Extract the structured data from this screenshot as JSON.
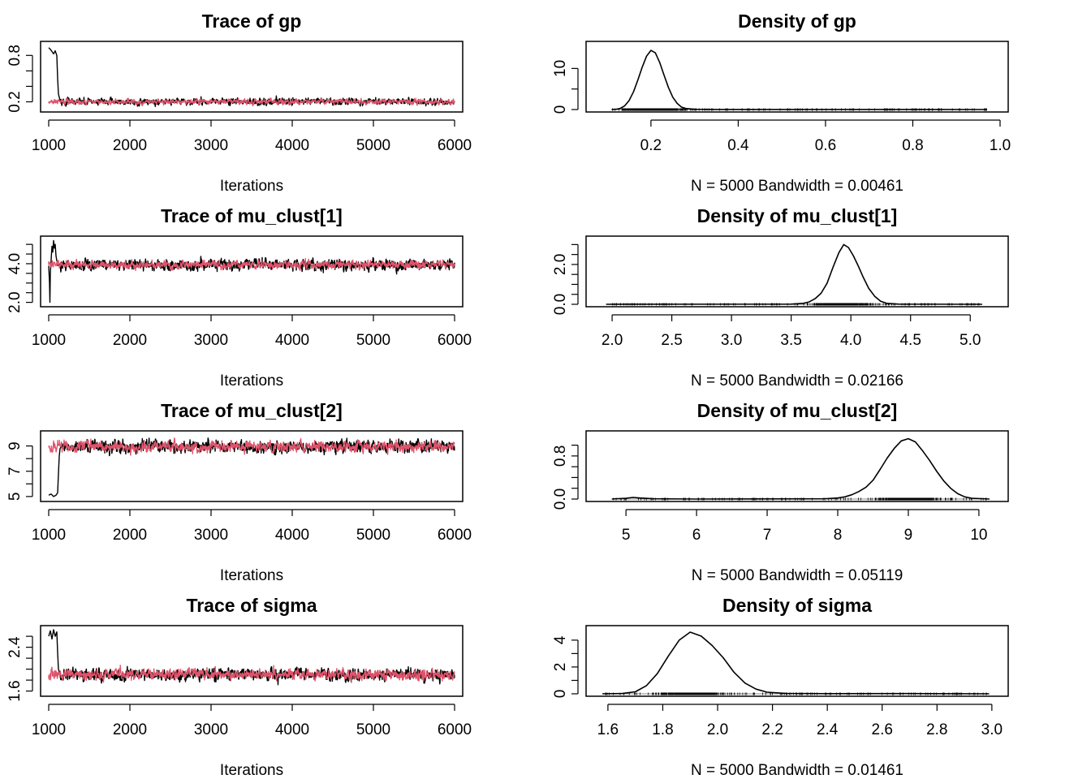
{
  "chart_data": [
    {
      "type": "line",
      "kind": "trace",
      "title": "Trace of gp",
      "xlabel": "Iterations",
      "xlim": [
        1000,
        6000
      ],
      "ylim": [
        0.1,
        0.95
      ],
      "xticks": [
        1000,
        2000,
        3000,
        4000,
        5000,
        6000
      ],
      "xtick_labels": [
        "1000",
        "2000",
        "3000",
        "4000",
        "5000",
        "6000"
      ],
      "yticks": [
        0.2,
        0.4,
        0.6,
        0.8
      ],
      "ytick_labels": [
        "0.2",
        "",
        "",
        "0.8"
      ],
      "series": [
        {
          "color": "#000000",
          "burnin": [
            [
              1000,
              0.9
            ],
            [
              1020,
              0.88
            ],
            [
              1040,
              0.85
            ],
            [
              1060,
              0.82
            ],
            [
              1080,
              0.86
            ],
            [
              1100,
              0.8
            ],
            [
              1110,
              0.5
            ],
            [
              1120,
              0.3
            ],
            [
              1140,
              0.22
            ]
          ],
          "mean": 0.2,
          "spread": 0.03
        },
        {
          "color": "#DF536B",
          "burnin": [
            [
              1000,
              0.2
            ]
          ],
          "mean": 0.2,
          "spread": 0.025
        }
      ]
    },
    {
      "type": "line",
      "kind": "density",
      "title": "Density of gp",
      "note": "N = 5000   Bandwidth = 0.00461",
      "xlim": [
        0.07,
        1.0
      ],
      "ylim": [
        0,
        16
      ],
      "xticks": [
        0.2,
        0.4,
        0.6,
        0.8,
        1.0
      ],
      "xtick_labels": [
        "0.2",
        "0.4",
        "0.6",
        "0.8",
        "1.0"
      ],
      "yticks": [
        0,
        5,
        10
      ],
      "ytick_labels": [
        "0",
        "",
        "10"
      ],
      "rug": [
        0.11,
        0.97
      ],
      "curve": [
        [
          0.11,
          0
        ],
        [
          0.12,
          0.05
        ],
        [
          0.13,
          0.3
        ],
        [
          0.14,
          0.9
        ],
        [
          0.15,
          2.2
        ],
        [
          0.16,
          4.3
        ],
        [
          0.17,
          7.2
        ],
        [
          0.18,
          10.3
        ],
        [
          0.19,
          13.0
        ],
        [
          0.2,
          14.4
        ],
        [
          0.21,
          13.8
        ],
        [
          0.22,
          11.5
        ],
        [
          0.23,
          8.4
        ],
        [
          0.24,
          5.4
        ],
        [
          0.25,
          3.0
        ],
        [
          0.26,
          1.5
        ],
        [
          0.27,
          0.6
        ],
        [
          0.28,
          0.25
        ],
        [
          0.3,
          0.05
        ],
        [
          0.35,
          0.01
        ],
        [
          0.8,
          0.02
        ],
        [
          0.97,
          0
        ]
      ]
    },
    {
      "type": "line",
      "kind": "trace",
      "title": "Trace of mu_clust[1]",
      "xlabel": "Iterations",
      "xlim": [
        1000,
        6000
      ],
      "ylim": [
        1.9,
        5.3
      ],
      "xticks": [
        1000,
        2000,
        3000,
        4000,
        5000,
        6000
      ],
      "xtick_labels": [
        "1000",
        "2000",
        "3000",
        "4000",
        "5000",
        "6000"
      ],
      "yticks": [
        2,
        2.5,
        3,
        3.5,
        4,
        4.5,
        5
      ],
      "ytick_labels": [
        "2.0",
        "",
        "",
        "",
        "4.0",
        "",
        ""
      ],
      "series": [
        {
          "color": "#000000",
          "burnin": [
            [
              1000,
              3.9
            ],
            [
              1010,
              3.0
            ],
            [
              1015,
              2.0
            ],
            [
              1020,
              3.5
            ],
            [
              1030,
              4.2
            ],
            [
              1040,
              4.9
            ],
            [
              1050,
              4.6
            ],
            [
              1060,
              5.2
            ],
            [
              1070,
              4.8
            ],
            [
              1080,
              5.0
            ],
            [
              1090,
              4.4
            ],
            [
              1110,
              3.9
            ],
            [
              1140,
              4.0
            ]
          ],
          "mean": 3.95,
          "spread": 0.2
        },
        {
          "color": "#DF536B",
          "burnin": [
            [
              1000,
              3.95
            ]
          ],
          "mean": 3.95,
          "spread": 0.15
        }
      ]
    },
    {
      "type": "line",
      "kind": "density",
      "title": "Density of mu_clust[1]",
      "note": "N = 5000   Bandwidth = 0.02166",
      "xlim": [
        1.85,
        5.25
      ],
      "ylim": [
        0,
        3.3
      ],
      "xticks": [
        2.0,
        2.5,
        3.0,
        3.5,
        4.0,
        4.5,
        5.0
      ],
      "xtick_labels": [
        "2.0",
        "2.5",
        "3.0",
        "3.5",
        "4.0",
        "4.5",
        "5.0"
      ],
      "yticks": [
        0,
        0.5,
        1,
        1.5,
        2,
        2.5,
        3
      ],
      "ytick_labels": [
        "0.0",
        "",
        "",
        "",
        "2.0",
        "",
        ""
      ],
      "rug": [
        1.95,
        5.1
      ],
      "curve": [
        [
          1.95,
          0
        ],
        [
          3.5,
          0.01
        ],
        [
          3.6,
          0.05
        ],
        [
          3.65,
          0.12
        ],
        [
          3.7,
          0.28
        ],
        [
          3.75,
          0.55
        ],
        [
          3.8,
          1.05
        ],
        [
          3.85,
          1.85
        ],
        [
          3.9,
          2.6
        ],
        [
          3.94,
          3.0
        ],
        [
          3.98,
          2.85
        ],
        [
          4.02,
          2.45
        ],
        [
          4.06,
          1.95
        ],
        [
          4.1,
          1.4
        ],
        [
          4.15,
          0.8
        ],
        [
          4.2,
          0.4
        ],
        [
          4.25,
          0.15
        ],
        [
          4.3,
          0.05
        ],
        [
          4.4,
          0.01
        ],
        [
          5.1,
          0
        ]
      ]
    },
    {
      "type": "line",
      "kind": "trace",
      "title": "Trace of mu_clust[2]",
      "xlabel": "Iterations",
      "xlim": [
        1000,
        6000
      ],
      "ylim": [
        4.8,
        10.0
      ],
      "xticks": [
        1000,
        2000,
        3000,
        4000,
        5000,
        6000
      ],
      "xtick_labels": [
        "1000",
        "2000",
        "3000",
        "4000",
        "5000",
        "6000"
      ],
      "yticks": [
        5,
        6,
        7,
        8,
        9
      ],
      "ytick_labels": [
        "5",
        "",
        "7",
        "",
        "9"
      ],
      "series": [
        {
          "color": "#000000",
          "burnin": [
            [
              1000,
              5.1
            ],
            [
              1030,
              5.2
            ],
            [
              1060,
              5.0
            ],
            [
              1090,
              5.1
            ],
            [
              1110,
              5.3
            ],
            [
              1120,
              6.8
            ],
            [
              1130,
              8.2
            ],
            [
              1140,
              8.8
            ],
            [
              1160,
              9.0
            ]
          ],
          "mean": 8.95,
          "spread": 0.35
        },
        {
          "color": "#DF536B",
          "burnin": [
            [
              1000,
              8.95
            ]
          ],
          "mean": 8.95,
          "spread": 0.3
        }
      ]
    },
    {
      "type": "line",
      "kind": "density",
      "title": "Density of mu_clust[2]",
      "note": "N = 5000   Bandwidth = 0.05119",
      "xlim": [
        4.55,
        10.3
      ],
      "ylim": [
        0,
        1.22
      ],
      "xticks": [
        5,
        6,
        7,
        8,
        9,
        10
      ],
      "xtick_labels": [
        "5",
        "6",
        "7",
        "8",
        "9",
        "10"
      ],
      "yticks": [
        0,
        0.2,
        0.4,
        0.6,
        0.8,
        1.0
      ],
      "ytick_labels": [
        "0.0",
        "",
        "",
        "",
        "0.8",
        ""
      ],
      "rug": [
        4.8,
        10.15
      ],
      "curve": [
        [
          4.8,
          0
        ],
        [
          5.0,
          0.015
        ],
        [
          5.1,
          0.03
        ],
        [
          5.2,
          0.02
        ],
        [
          5.4,
          0.005
        ],
        [
          6.0,
          0
        ],
        [
          7.8,
          0.005
        ],
        [
          8.0,
          0.02
        ],
        [
          8.1,
          0.04
        ],
        [
          8.2,
          0.08
        ],
        [
          8.3,
          0.14
        ],
        [
          8.4,
          0.22
        ],
        [
          8.5,
          0.35
        ],
        [
          8.6,
          0.55
        ],
        [
          8.7,
          0.76
        ],
        [
          8.8,
          0.94
        ],
        [
          8.9,
          1.08
        ],
        [
          9.0,
          1.12
        ],
        [
          9.1,
          1.06
        ],
        [
          9.2,
          0.9
        ],
        [
          9.3,
          0.72
        ],
        [
          9.4,
          0.52
        ],
        [
          9.5,
          0.34
        ],
        [
          9.6,
          0.2
        ],
        [
          9.7,
          0.1
        ],
        [
          9.8,
          0.04
        ],
        [
          9.9,
          0.015
        ],
        [
          10.15,
          0
        ]
      ]
    },
    {
      "type": "line",
      "kind": "trace",
      "title": "Trace of sigma",
      "xlabel": "Iterations",
      "xlim": [
        1000,
        6000
      ],
      "ylim": [
        1.55,
        2.75
      ],
      "xticks": [
        1000,
        2000,
        3000,
        4000,
        5000,
        6000
      ],
      "xtick_labels": [
        "1000",
        "2000",
        "3000",
        "4000",
        "5000",
        "6000"
      ],
      "yticks": [
        1.6,
        1.8,
        2.0,
        2.2,
        2.4,
        2.6
      ],
      "ytick_labels": [
        "1.6",
        "",
        "",
        "",
        "2.4",
        ""
      ],
      "series": [
        {
          "color": "#000000",
          "burnin": [
            [
              1000,
              2.6
            ],
            [
              1020,
              2.7
            ],
            [
              1040,
              2.55
            ],
            [
              1060,
              2.72
            ],
            [
              1080,
              2.6
            ],
            [
              1100,
              2.68
            ],
            [
              1110,
              2.3
            ],
            [
              1120,
              2.0
            ],
            [
              1140,
              1.9
            ]
          ],
          "mean": 1.9,
          "spread": 0.08
        },
        {
          "color": "#DF536B",
          "burnin": [
            [
              1000,
              1.9
            ]
          ],
          "mean": 1.9,
          "spread": 0.07
        }
      ]
    },
    {
      "type": "line",
      "kind": "density",
      "title": "Density of sigma",
      "note": "N = 5000   Bandwidth = 0.01461",
      "xlim": [
        1.55,
        3.03
      ],
      "ylim": [
        0,
        4.9
      ],
      "xticks": [
        1.6,
        1.8,
        2.0,
        2.2,
        2.4,
        2.6,
        2.8,
        3.0
      ],
      "xtick_labels": [
        "1.6",
        "1.8",
        "2.0",
        "2.2",
        "2.4",
        "2.6",
        "2.8",
        "3.0"
      ],
      "yticks": [
        0,
        1,
        2,
        3,
        4
      ],
      "ytick_labels": [
        "0",
        "",
        "2",
        "",
        "4"
      ],
      "rug": [
        1.58,
        2.99
      ],
      "curve": [
        [
          1.58,
          0
        ],
        [
          1.65,
          0.02
        ],
        [
          1.7,
          0.15
        ],
        [
          1.74,
          0.6
        ],
        [
          1.78,
          1.5
        ],
        [
          1.82,
          2.8
        ],
        [
          1.86,
          4.0
        ],
        [
          1.9,
          4.6
        ],
        [
          1.94,
          4.3
        ],
        [
          1.98,
          3.6
        ],
        [
          2.02,
          2.7
        ],
        [
          2.06,
          1.6
        ],
        [
          2.1,
          0.8
        ],
        [
          2.14,
          0.35
        ],
        [
          2.18,
          0.12
        ],
        [
          2.25,
          0.03
        ],
        [
          2.4,
          0.01
        ],
        [
          2.7,
          0.02
        ],
        [
          2.99,
          0
        ]
      ]
    }
  ]
}
